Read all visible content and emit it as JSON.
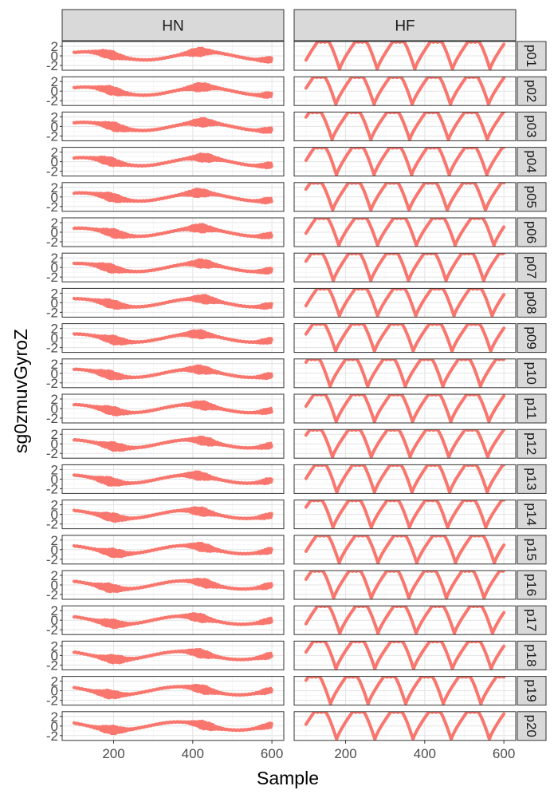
{
  "chart_data": {
    "type": "line",
    "xlabel": "Sample",
    "ylabel": "sg0zmuvGyroZ",
    "col_facets": [
      "HN",
      "HF"
    ],
    "row_facets": [
      "p01",
      "p02",
      "p03",
      "p04",
      "p05",
      "p06",
      "p07",
      "p08",
      "p09",
      "p10",
      "p11",
      "p12",
      "p13",
      "p14",
      "p15",
      "p16",
      "p17",
      "p18",
      "p19",
      "p20"
    ],
    "x_ticks": [
      200,
      400,
      600
    ],
    "xlim": [
      70,
      630
    ],
    "y_ticks": [
      -2,
      0,
      2
    ],
    "ylim": [
      -3,
      3
    ],
    "x_range_data": [
      100,
      600
    ],
    "line_color": "#F8766D",
    "strip_fill": "#D9D9D9",
    "panel_border": "#333333",
    "grid": true,
    "series_shape": {
      "HN": {
        "description_note": "",
        "bursts_at": [
          200,
          420
        ],
        "slow_period": 300
      },
      "HF": {
        "period": 95
      }
    }
  }
}
